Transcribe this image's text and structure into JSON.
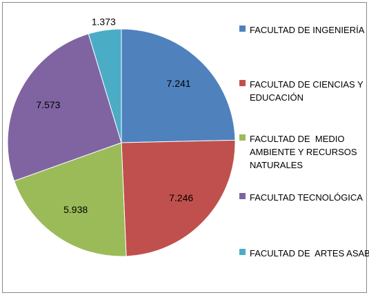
{
  "chart_data": {
    "type": "pie",
    "series": [
      {
        "name": "FACULTAD DE INGENIERÍA",
        "color": "#4f81bd",
        "values": [
          7.241
        ]
      },
      {
        "name": "FACULTAD DE CIENCIAS Y EDUCACIÓN",
        "color": "#c0504d",
        "values": [
          7.246
        ]
      },
      {
        "name": "FACULTAD DE  MEDIO AMBIENTE Y RECURSOS NATURALES",
        "color": "#9bbb59",
        "values": [
          5.938
        ]
      },
      {
        "name": "FACULTAD TECNOLÓGICA",
        "color": "#8064a2",
        "values": [
          7.573
        ]
      },
      {
        "name": "FACULTAD DE  ARTES ASAB",
        "color": "#4bacc6",
        "values": [
          1.373
        ]
      }
    ],
    "legend": "right"
  }
}
